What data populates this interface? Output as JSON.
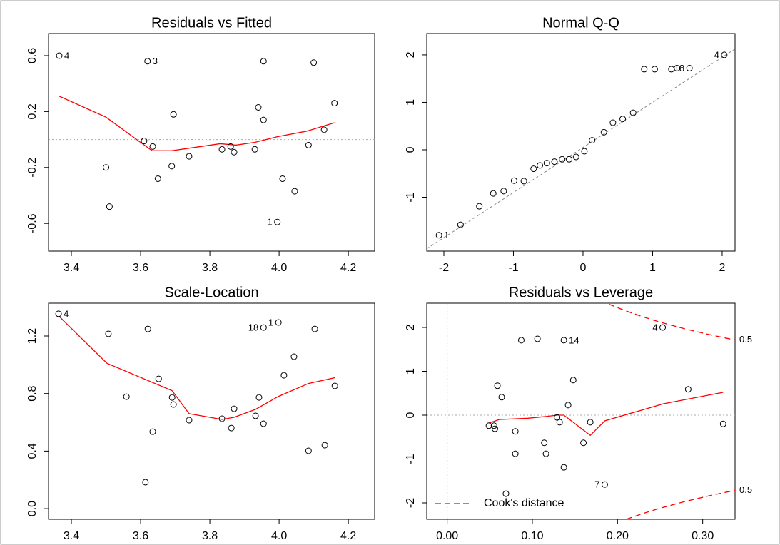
{
  "chart_data": [
    {
      "type": "scatter",
      "title": "Residuals vs Fitted",
      "x": [
        3.365,
        3.62,
        3.695,
        3.5,
        3.51,
        3.61,
        3.635,
        3.65,
        3.69,
        3.74,
        3.835,
        3.86,
        3.87,
        3.93,
        3.94,
        3.955,
        3.955,
        3.995,
        4.01,
        4.045,
        4.085,
        4.1,
        4.13,
        4.16
      ],
      "values": [
        0.6,
        0.56,
        0.18,
        -0.2,
        -0.48,
        -0.01,
        -0.05,
        -0.28,
        -0.19,
        -0.12,
        -0.07,
        -0.05,
        -0.09,
        -0.07,
        0.23,
        0.56,
        0.14,
        -0.59,
        -0.28,
        -0.37,
        -0.04,
        0.55,
        0.07,
        0.26
      ],
      "labels": [
        "4",
        "3",
        null,
        null,
        null,
        null,
        null,
        null,
        null,
        null,
        null,
        null,
        null,
        null,
        null,
        null,
        null,
        "1",
        null,
        null,
        null,
        null,
        null,
        null
      ],
      "color": "#000000",
      "series": [
        {
          "color": "#ff0000",
          "x": [
            3.365,
            3.5,
            3.633,
            3.69,
            3.83,
            3.875,
            3.93,
            3.995,
            4.08,
            4.16
          ],
          "values": [
            0.31,
            0.16,
            -0.08,
            -0.08,
            -0.03,
            -0.04,
            -0.02,
            0.02,
            0.06,
            0.12
          ]
        }
      ],
      "ref_y": 0,
      "xlim": [
        3.334,
        4.276
      ],
      "ylim": [
        -0.798,
        0.758
      ],
      "xticks": [
        3.4,
        3.6,
        3.8,
        {
          "value": 4,
          "label": "4.0"
        },
        4.2
      ],
      "yticks": [
        -0.6,
        -0.2,
        0.2,
        0.6
      ]
    },
    {
      "type": "scatter",
      "title": "Normal Q-Q",
      "x": [
        -2.07,
        -1.76,
        -1.49,
        -1.29,
        -1.14,
        -0.99,
        -0.85,
        -0.71,
        -0.62,
        -0.52,
        -0.41,
        -0.3,
        -0.2,
        -0.1,
        0.02,
        0.13,
        0.3,
        0.43,
        0.57,
        0.72,
        0.88,
        1.03,
        1.27,
        1.35,
        1.53,
        2.03
      ],
      "values": [
        -1.8,
        -1.58,
        -1.19,
        -0.92,
        -0.87,
        -0.65,
        -0.66,
        -0.4,
        -0.33,
        -0.28,
        -0.25,
        -0.2,
        -0.2,
        -0.15,
        -0.03,
        0.2,
        0.37,
        0.57,
        0.65,
        0.78,
        1.7,
        1.7,
        1.7,
        1.72,
        1.72,
        2.0
      ],
      "labels": [
        "1",
        null,
        null,
        null,
        null,
        null,
        null,
        null,
        null,
        null,
        null,
        null,
        null,
        null,
        null,
        null,
        null,
        null,
        null,
        null,
        null,
        null,
        null,
        null,
        "18",
        "4"
      ],
      "color": "#000000",
      "ref_line": {
        "intercept": 0.05,
        "slope": 0.95,
        "color": "#888888"
      },
      "xlim": [
        -2.246,
        2.185
      ],
      "ylim": [
        -2.135,
        2.45
      ],
      "xticks": [
        -2,
        -1,
        0,
        1,
        2
      ],
      "yticks": [
        -1,
        0,
        1,
        2
      ]
    },
    {
      "type": "scatter",
      "title": "Scale-Location",
      "x": [
        3.363,
        3.507,
        3.559,
        3.621,
        3.614,
        3.635,
        3.652,
        3.691,
        3.695,
        3.74,
        3.835,
        3.862,
        3.87,
        3.932,
        3.942,
        3.955,
        3.955,
        3.998,
        4.014,
        4.043,
        4.085,
        4.103,
        4.132,
        4.161
      ],
      "values": [
        1.354,
        1.215,
        0.778,
        1.249,
        0.184,
        0.535,
        0.902,
        0.773,
        0.724,
        0.615,
        0.625,
        0.56,
        0.694,
        0.645,
        0.773,
        0.59,
        1.259,
        1.294,
        0.927,
        1.056,
        0.402,
        1.249,
        0.441,
        0.853
      ],
      "labels": [
        "4",
        null,
        null,
        null,
        null,
        null,
        null,
        null,
        null,
        null,
        null,
        null,
        null,
        null,
        null,
        null,
        "18",
        "1",
        null,
        null,
        null,
        null,
        null,
        null
      ],
      "color": "#000000",
      "series": [
        {
          "color": "#ff0000",
          "x": [
            3.363,
            3.503,
            3.691,
            3.74,
            3.835,
            3.87,
            3.932,
            3.998,
            4.085,
            4.161
          ],
          "values": [
            1.34,
            1.01,
            0.82,
            0.66,
            0.62,
            0.635,
            0.69,
            0.78,
            0.87,
            0.91
          ]
        }
      ],
      "xlim": [
        3.334,
        4.276
      ],
      "ylim": [
        -0.074,
        1.428
      ],
      "xticks": [
        3.4,
        3.6,
        3.8,
        {
          "value": 4,
          "label": "4.0"
        },
        4.2
      ],
      "yticks": [
        {
          "value": 0,
          "label": "0.0"
        },
        0.4,
        0.8,
        1.2
      ]
    },
    {
      "type": "scatter",
      "title": "Residuals vs Leverage",
      "x": [
        0.049,
        0.056,
        0.055,
        0.059,
        0.064,
        0.069,
        0.08,
        0.08,
        0.087,
        0.106,
        0.114,
        0.116,
        0.129,
        0.132,
        0.137,
        0.137,
        0.142,
        0.148,
        0.16,
        0.168,
        0.185,
        0.253,
        0.283,
        0.324
      ],
      "values": [
        -0.24,
        -0.31,
        -0.24,
        0.67,
        0.41,
        -1.79,
        -0.37,
        -0.88,
        1.71,
        1.74,
        -0.63,
        -0.88,
        -0.05,
        -0.16,
        1.71,
        -1.19,
        0.23,
        0.8,
        -0.63,
        -0.16,
        -1.58,
        2.0,
        0.59,
        -0.2
      ],
      "labels": [
        null,
        null,
        null,
        null,
        null,
        null,
        null,
        null,
        null,
        null,
        null,
        null,
        null,
        null,
        "14",
        null,
        null,
        null,
        null,
        null,
        "7",
        "4",
        null,
        null
      ],
      "color": "#000000",
      "series": [
        {
          "color": "#ff0000",
          "x": [
            0.049,
            0.061,
            0.095,
            0.116,
            0.129,
            0.137,
            0.168,
            0.185,
            0.254,
            0.324
          ],
          "values": [
            -0.18,
            -0.1,
            -0.07,
            -0.03,
            0,
            0,
            -0.46,
            -0.13,
            0.26,
            0.52
          ]
        }
      ],
      "cooks": {
        "level": 0.5,
        "color": "#ff0000",
        "upper": {
          "x": [
            0.19,
            0.21,
            0.23,
            0.25,
            0.28,
            0.31,
            0.338
          ],
          "values": [
            2.529,
            2.375,
            2.241,
            2.121,
            1.964,
            1.827,
            1.714
          ]
        },
        "lower": {
          "x": [
            0.19,
            0.21,
            0.23,
            0.25,
            0.28,
            0.31,
            0.338
          ],
          "values": [
            -2.529,
            -2.375,
            -2.241,
            -2.121,
            -1.964,
            -1.827,
            -1.714
          ]
        }
      },
      "legend": {
        "label": "Cook's distance",
        "position": "bottom-left"
      },
      "ref_y": 0,
      "ref_x": 0,
      "xlim": [
        -0.024,
        0.338
      ],
      "ylim": [
        -2.374,
        2.553
      ],
      "xticks": [
        {
          "value": 0,
          "label": "0.00"
        },
        {
          "value": 0.1,
          "label": "0.10"
        },
        {
          "value": 0.2,
          "label": "0.20"
        },
        {
          "value": 0.3,
          "label": "0.30"
        }
      ],
      "yticks": [
        -2,
        -1,
        0,
        1,
        2
      ]
    }
  ]
}
